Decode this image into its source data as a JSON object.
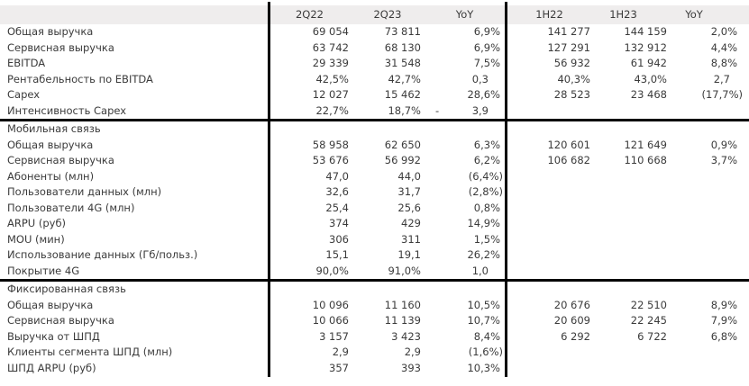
{
  "colors": {
    "header_bg": "#efeded",
    "text": "#3b3b3b",
    "divider_line": "#000000"
  },
  "table": {
    "columns": [
      "2Q22",
      "2Q23",
      "YoY",
      "1H22",
      "1H23",
      "YoY"
    ],
    "sections": [
      {
        "title": "",
        "rows": [
          {
            "label": "Общая выручка",
            "values": [
              "69 054",
              "73 811",
              "6,9%",
              "141 277",
              "144 159",
              "2,0%"
            ]
          },
          {
            "label": "Сервисная выручка",
            "values": [
              "63 742",
              "68 130",
              "6,9%",
              "127 291",
              "132 912",
              "4,4%"
            ]
          },
          {
            "label": "EBITDA",
            "values": [
              "29 339",
              "31 548",
              "7,5%",
              "56 932",
              "61 942",
              "8,8%"
            ]
          },
          {
            "label": "Рентабельность по EBITDA",
            "values": [
              "42,5%",
              "42,7%",
              "0,3",
              "40,3%",
              "43,0%",
              "2,7"
            ]
          },
          {
            "label": "Capex",
            "values": [
              "12 027",
              "15 462",
              "28,6%",
              "28 523",
              "23 468",
              "(17,7%)"
            ]
          },
          {
            "label": "Интенсивность Capex",
            "values": [
              "22,7%",
              "18,7%",
              "- 3,9",
              "",
              "",
              ""
            ]
          }
        ]
      },
      {
        "title": "Мобильная связь",
        "rows": [
          {
            "label": "Общая выручка",
            "values": [
              "58 958",
              "62 650",
              "6,3%",
              "120 601",
              "121 649",
              "0,9%"
            ]
          },
          {
            "label": "Сервисная выручка",
            "values": [
              "53 676",
              "56 992",
              "6,2%",
              "106 682",
              "110 668",
              "3,7%"
            ]
          },
          {
            "label": "Абоненты (млн)",
            "values": [
              "47,0",
              "44,0",
              "(6,4%)",
              "",
              "",
              ""
            ]
          },
          {
            "label": "Пользователи данных (млн)",
            "values": [
              "32,6",
              "31,7",
              "(2,8%)",
              "",
              "",
              ""
            ]
          },
          {
            "label": "Пользователи 4G (млн)",
            "values": [
              "25,4",
              "25,6",
              "0,8%",
              "",
              "",
              ""
            ]
          },
          {
            "label": "ARPU (руб)",
            "values": [
              "374",
              "429",
              "14,9%",
              "",
              "",
              ""
            ]
          },
          {
            "label": "MOU (мин)",
            "values": [
              "306",
              "311",
              "1,5%",
              "",
              "",
              ""
            ]
          },
          {
            "label": "Использование данных (Гб/польз.)",
            "values": [
              "15,1",
              "19,1",
              "26,2%",
              "",
              "",
              ""
            ]
          },
          {
            "label": "Покрытие 4G",
            "values": [
              "90,0%",
              "91,0%",
              "1,0",
              "",
              "",
              ""
            ]
          }
        ]
      },
      {
        "title": "Фиксированная связь",
        "rows": [
          {
            "label": "Общая выручка",
            "values": [
              "10 096",
              "11 160",
              "10,5%",
              "20 676",
              "22 510",
              "8,9%"
            ]
          },
          {
            "label": "Сервисная выручка",
            "values": [
              "10 066",
              "11 139",
              "10,7%",
              "20 609",
              "22 245",
              "7,9%"
            ]
          },
          {
            "label": "Выручка от ШПД",
            "values": [
              "3 157",
              "3 423",
              "8,4%",
              "6 292",
              "6 722",
              "6,8%"
            ]
          },
          {
            "label": "Клиенты сегмента ШПД (млн)",
            "values": [
              "2,9",
              "2,9",
              "(1,6%)",
              "",
              "",
              ""
            ]
          },
          {
            "label": "ШПД ARPU (руб)",
            "values": [
              "357",
              "393",
              "10,3%",
              "",
              "",
              ""
            ]
          }
        ]
      }
    ]
  }
}
